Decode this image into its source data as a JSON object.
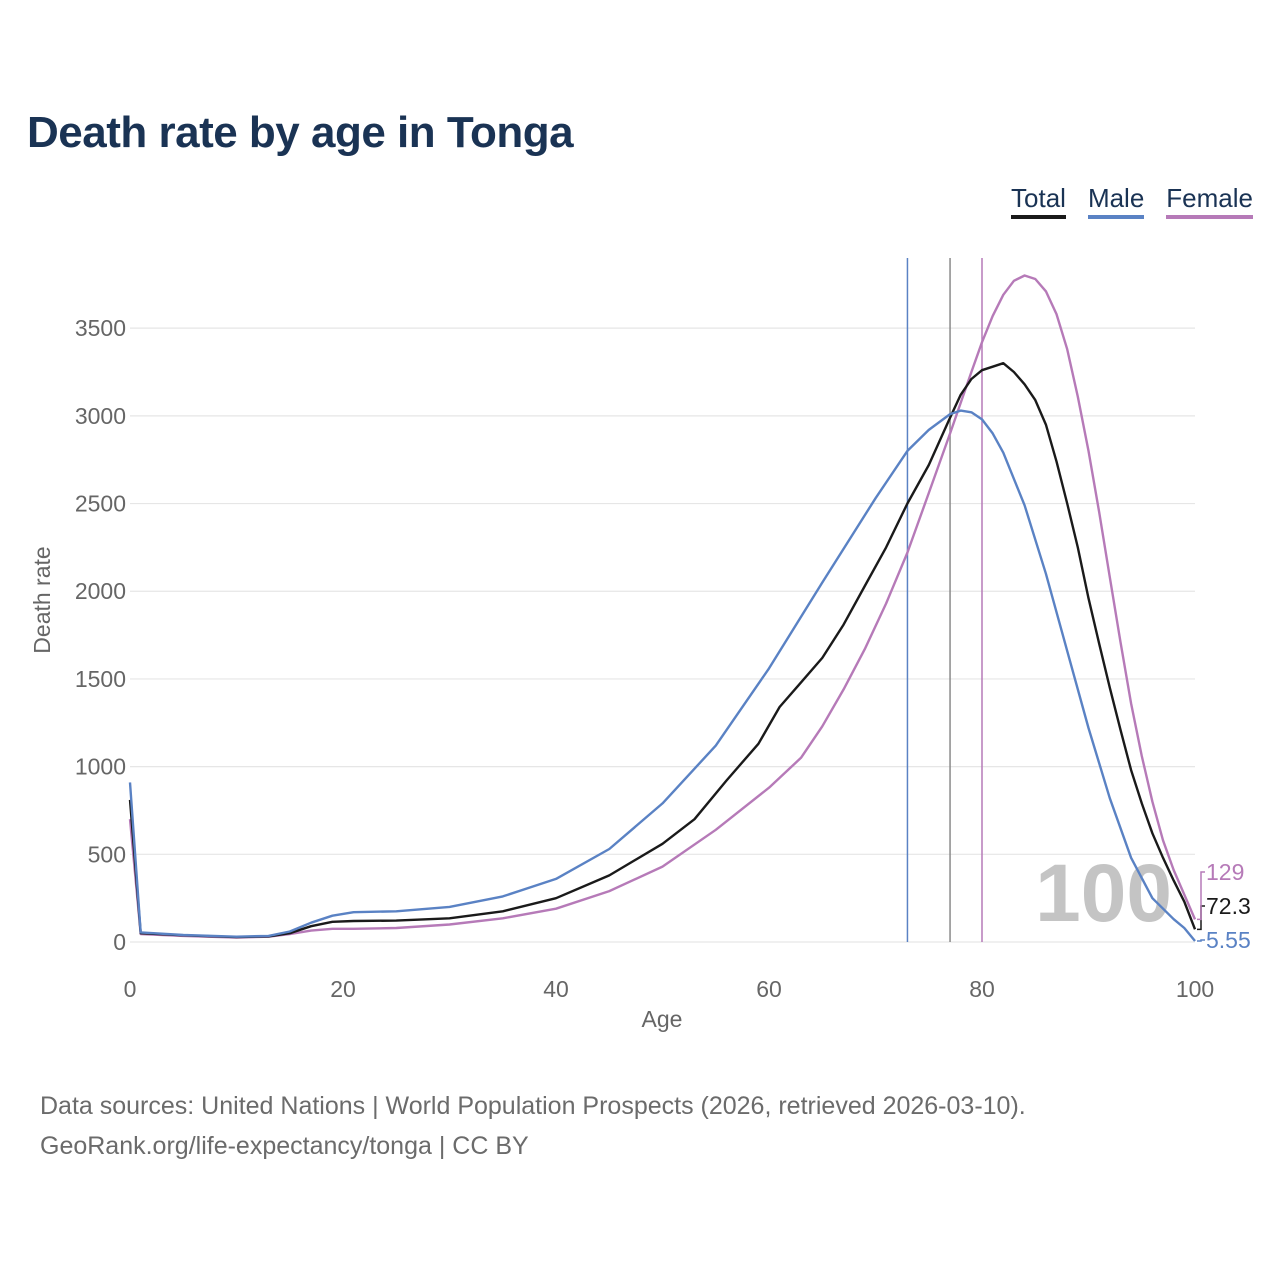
{
  "title": "Death rate by age in Tonga",
  "legend": [
    {
      "label": "Total",
      "color": "#1a1a1a"
    },
    {
      "label": "Male",
      "color": "#5a82c4"
    },
    {
      "label": "Female",
      "color": "#b67ab8"
    }
  ],
  "source_line1": "Data sources: United Nations | World Population Prospects (2026, retrieved 2026-03-10).",
  "source_line2": "GeoRank.org/life-expectancy/tonga | CC BY",
  "chart_data": {
    "type": "line",
    "title": "Death rate by age in Tonga",
    "xlabel": "Age",
    "ylabel": "Death rate",
    "xlim": [
      0,
      100
    ],
    "ylim": [
      0,
      3900
    ],
    "xticks": [
      0,
      20,
      40,
      60,
      80,
      100
    ],
    "yticks": [
      0,
      500,
      1000,
      1500,
      2000,
      2500,
      3000,
      3500
    ],
    "grid": true,
    "legend_position": "top-right",
    "watermark_label": "100",
    "series": [
      {
        "name": "Male",
        "color": "#5a82c4",
        "points": [
          [
            0,
            910
          ],
          [
            1,
            55
          ],
          [
            5,
            40
          ],
          [
            10,
            30
          ],
          [
            13,
            35
          ],
          [
            15,
            60
          ],
          [
            17,
            110
          ],
          [
            19,
            150
          ],
          [
            21,
            170
          ],
          [
            25,
            175
          ],
          [
            30,
            200
          ],
          [
            35,
            260
          ],
          [
            40,
            360
          ],
          [
            45,
            530
          ],
          [
            50,
            790
          ],
          [
            55,
            1120
          ],
          [
            60,
            1560
          ],
          [
            65,
            2050
          ],
          [
            70,
            2530
          ],
          [
            73,
            2800
          ],
          [
            75,
            2920
          ],
          [
            77,
            3010
          ],
          [
            78,
            3030
          ],
          [
            79,
            3020
          ],
          [
            80,
            2980
          ],
          [
            81,
            2900
          ],
          [
            82,
            2790
          ],
          [
            84,
            2490
          ],
          [
            86,
            2100
          ],
          [
            88,
            1660
          ],
          [
            90,
            1220
          ],
          [
            92,
            820
          ],
          [
            94,
            480
          ],
          [
            96,
            250
          ],
          [
            98,
            130
          ],
          [
            99,
            80
          ],
          [
            100,
            5.55
          ]
        ],
        "end_label": "5.55"
      },
      {
        "name": "Total",
        "color": "#1a1a1a",
        "points": [
          [
            0,
            810
          ],
          [
            1,
            50
          ],
          [
            5,
            38
          ],
          [
            10,
            28
          ],
          [
            13,
            32
          ],
          [
            15,
            50
          ],
          [
            17,
            90
          ],
          [
            19,
            115
          ],
          [
            21,
            120
          ],
          [
            25,
            122
          ],
          [
            30,
            135
          ],
          [
            35,
            175
          ],
          [
            40,
            250
          ],
          [
            45,
            380
          ],
          [
            50,
            560
          ],
          [
            53,
            700
          ],
          [
            56,
            920
          ],
          [
            59,
            1130
          ],
          [
            61,
            1340
          ],
          [
            63,
            1480
          ],
          [
            65,
            1620
          ],
          [
            67,
            1810
          ],
          [
            69,
            2030
          ],
          [
            71,
            2250
          ],
          [
            73,
            2500
          ],
          [
            75,
            2720
          ],
          [
            77,
            2990
          ],
          [
            78,
            3120
          ],
          [
            79,
            3210
          ],
          [
            80,
            3260
          ],
          [
            81,
            3280
          ],
          [
            82,
            3300
          ],
          [
            83,
            3250
          ],
          [
            84,
            3180
          ],
          [
            85,
            3090
          ],
          [
            86,
            2950
          ],
          [
            87,
            2740
          ],
          [
            88,
            2500
          ],
          [
            89,
            2250
          ],
          [
            90,
            1960
          ],
          [
            91,
            1700
          ],
          [
            92,
            1450
          ],
          [
            93,
            1210
          ],
          [
            94,
            980
          ],
          [
            95,
            790
          ],
          [
            96,
            620
          ],
          [
            97,
            480
          ],
          [
            98,
            350
          ],
          [
            99,
            230
          ],
          [
            100,
            72.3
          ]
        ],
        "end_label": "72.3"
      },
      {
        "name": "Female",
        "color": "#b67ab8",
        "points": [
          [
            0,
            700
          ],
          [
            1,
            45
          ],
          [
            5,
            35
          ],
          [
            10,
            25
          ],
          [
            13,
            30
          ],
          [
            15,
            45
          ],
          [
            17,
            65
          ],
          [
            19,
            75
          ],
          [
            21,
            75
          ],
          [
            25,
            80
          ],
          [
            30,
            100
          ],
          [
            35,
            135
          ],
          [
            40,
            190
          ],
          [
            45,
            290
          ],
          [
            50,
            430
          ],
          [
            55,
            640
          ],
          [
            60,
            880
          ],
          [
            63,
            1050
          ],
          [
            65,
            1230
          ],
          [
            67,
            1440
          ],
          [
            69,
            1670
          ],
          [
            71,
            1930
          ],
          [
            73,
            2220
          ],
          [
            75,
            2560
          ],
          [
            77,
            2900
          ],
          [
            79,
            3250
          ],
          [
            80,
            3420
          ],
          [
            81,
            3570
          ],
          [
            82,
            3690
          ],
          [
            83,
            3770
          ],
          [
            84,
            3800
          ],
          [
            85,
            3780
          ],
          [
            86,
            3710
          ],
          [
            87,
            3580
          ],
          [
            88,
            3380
          ],
          [
            89,
            3110
          ],
          [
            90,
            2800
          ],
          [
            91,
            2450
          ],
          [
            92,
            2080
          ],
          [
            93,
            1710
          ],
          [
            94,
            1360
          ],
          [
            95,
            1060
          ],
          [
            96,
            800
          ],
          [
            97,
            580
          ],
          [
            98,
            410
          ],
          [
            99,
            270
          ],
          [
            100,
            129
          ]
        ],
        "end_label": "129"
      }
    ],
    "vertical_lines": [
      {
        "series": "Male",
        "x": 73,
        "color": "#5a82c4"
      },
      {
        "series": "Total",
        "x": 77,
        "color": "#8a8a8a"
      },
      {
        "series": "Female",
        "x": 80,
        "color": "#b67ab8"
      }
    ]
  }
}
